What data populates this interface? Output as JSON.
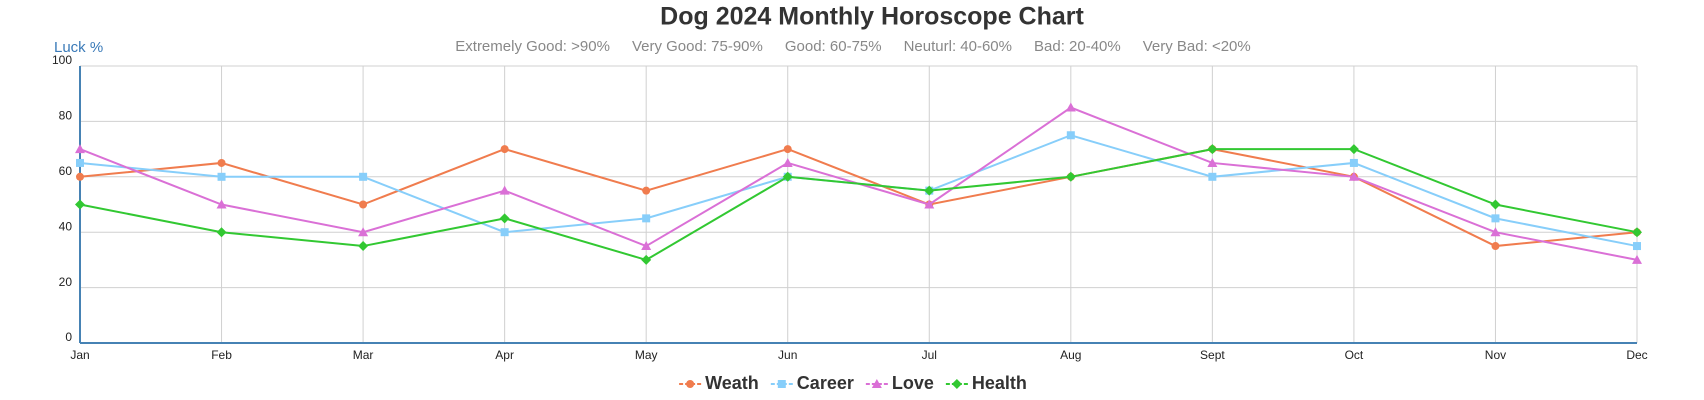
{
  "chart_data": {
    "type": "line",
    "title": "Dog 2024 Monthly Horoscope Chart",
    "y_label": "Luck %",
    "subtitle": [
      "Extremely Good: >90%",
      "Very Good: 75-90%",
      "Good: 60-75%",
      "Neuturl: 40-60%",
      "Bad: 20-40%",
      "Very Bad: <20%"
    ],
    "categories": [
      "Jan",
      "Feb",
      "Mar",
      "Apr",
      "May",
      "Jun",
      "Jul",
      "Aug",
      "Sept",
      "Oct",
      "Nov",
      "Dec"
    ],
    "series": [
      {
        "name": "Weath",
        "color": "#f07c4e",
        "marker": "circle",
        "values": [
          60,
          65,
          50,
          70,
          55,
          70,
          50,
          60,
          70,
          60,
          35,
          40
        ]
      },
      {
        "name": "Career",
        "color": "#87cefa",
        "marker": "square",
        "values": [
          65,
          60,
          60,
          40,
          45,
          60,
          55,
          75,
          60,
          65,
          45,
          35
        ]
      },
      {
        "name": "Love",
        "color": "#da70d6",
        "marker": "triangle",
        "values": [
          70,
          50,
          40,
          55,
          35,
          65,
          50,
          85,
          65,
          60,
          40,
          30
        ]
      },
      {
        "name": "Health",
        "color": "#32c832",
        "marker": "diamond",
        "values": [
          50,
          40,
          35,
          45,
          30,
          60,
          55,
          60,
          70,
          70,
          50,
          40
        ]
      }
    ],
    "ylim": [
      0,
      100
    ],
    "yticks": [
      0,
      20,
      40,
      60,
      80,
      100
    ],
    "grid": true,
    "legend": "bottom"
  }
}
